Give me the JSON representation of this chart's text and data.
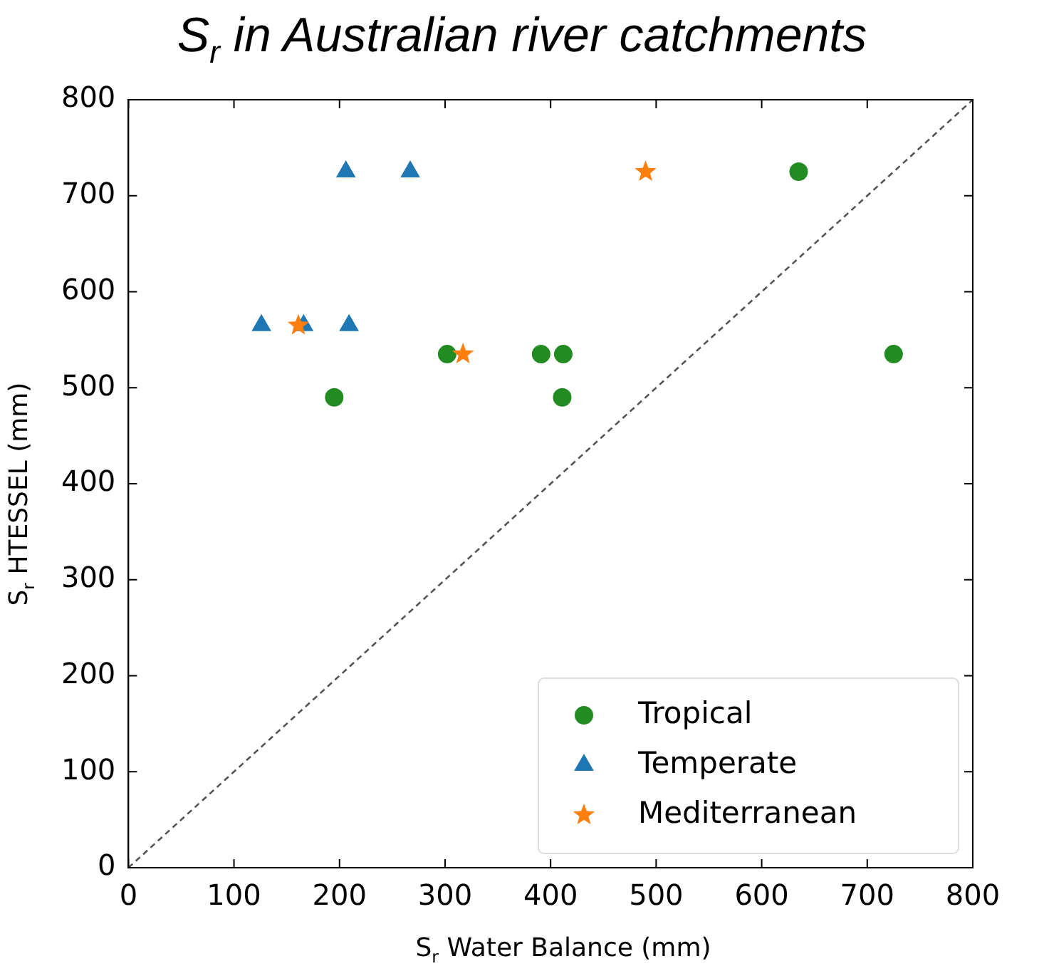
{
  "chart_data": {
    "type": "scatter",
    "title": "S$_{r}$ in Australian river catchments",
    "xlabel": "S$_{r}$ Water Balance (mm)",
    "ylabel": "S$_{r}$ HTESSEL (mm)",
    "xlim": [
      0,
      800
    ],
    "ylim": [
      0,
      800
    ],
    "xticks": [
      0,
      100,
      200,
      300,
      400,
      500,
      600,
      700,
      800
    ],
    "yticks": [
      0,
      100,
      200,
      300,
      400,
      500,
      600,
      700,
      800
    ],
    "grid": false,
    "legend": "bottom right",
    "series": [
      {
        "name": "Tropical",
        "color": "#228b22",
        "marker": "circle",
        "x": [
          635,
          725,
          302,
          391,
          412,
          195,
          411
        ],
        "values": [
          725,
          535,
          535,
          535,
          535,
          490,
          490
        ]
      },
      {
        "name": "Temperate",
        "color": "#1f77b4",
        "marker": "triangle",
        "x": [
          206,
          267,
          126,
          166,
          209
        ],
        "values": [
          725,
          725,
          565,
          565,
          565
        ]
      },
      {
        "name": "Mediterranean",
        "color": "#ff7f0e",
        "marker": "star",
        "x": [
          490,
          161,
          317
        ],
        "values": [
          725,
          565,
          535
        ]
      },
      {
        "type": "line",
        "color": "#555555",
        "line_style": "dashed",
        "marker": "none",
        "x": [
          0,
          800
        ],
        "values": [
          0,
          800
        ]
      }
    ]
  }
}
